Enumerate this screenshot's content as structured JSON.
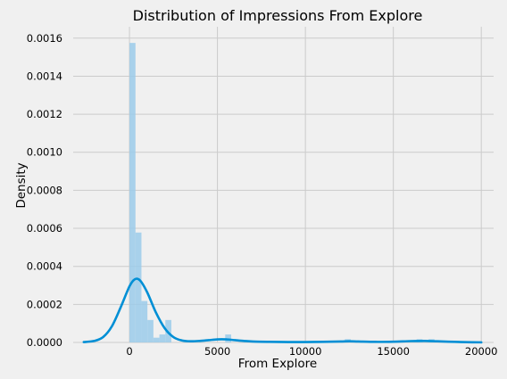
{
  "chart_data": {
    "type": "bar",
    "title": "Distribution of Impressions From Explore",
    "xlabel": "From Explore",
    "ylabel": "Density",
    "xlim": [
      -3200,
      20700
    ],
    "ylim": [
      0,
      0.00166
    ],
    "grid": true,
    "x_ticks": [
      {
        "value": 0,
        "label": "0"
      },
      {
        "value": 5000,
        "label": "5000"
      },
      {
        "value": 10000,
        "label": "10000"
      },
      {
        "value": 15000,
        "label": "15000"
      },
      {
        "value": 20000,
        "label": "20000"
      }
    ],
    "y_ticks": [
      {
        "value": 0,
        "label": "0.0000"
      },
      {
        "value": 0.0002,
        "label": "0.0002"
      },
      {
        "value": 0.0004,
        "label": "0.0004"
      },
      {
        "value": 0.0006,
        "label": "0.0006"
      },
      {
        "value": 0.0008,
        "label": "0.0008"
      },
      {
        "value": 0.001,
        "label": "0.0010"
      },
      {
        "value": 0.0012,
        "label": "0.0012"
      },
      {
        "value": 0.0014,
        "label": "0.0014"
      },
      {
        "value": 0.0016,
        "label": "0.0016"
      }
    ],
    "histogram": {
      "bins": [
        {
          "x0": 0,
          "x1": 340,
          "density": 0.001575
        },
        {
          "x0": 340,
          "x1": 680,
          "density": 0.000578
        },
        {
          "x0": 680,
          "x1": 1020,
          "density": 0.000218
        },
        {
          "x0": 1020,
          "x1": 1360,
          "density": 0.000118
        },
        {
          "x0": 1360,
          "x1": 1700,
          "density": 2.5e-05
        },
        {
          "x0": 1700,
          "x1": 2040,
          "density": 4.2e-05
        },
        {
          "x0": 2040,
          "x1": 2380,
          "density": 0.000118
        },
        {
          "x0": 5440,
          "x1": 5780,
          "density": 4.2e-05
        },
        {
          "x0": 12240,
          "x1": 12580,
          "density": 1.7e-05
        },
        {
          "x0": 16320,
          "x1": 16660,
          "density": 1.7e-05
        },
        {
          "x0": 17000,
          "x1": 17340,
          "density": 1.7e-05
        }
      ]
    },
    "kde": {
      "x": [
        -2600,
        -2000,
        -1500,
        -1000,
        -500,
        0,
        300,
        600,
        1000,
        1500,
        2000,
        2500,
        3000,
        3500,
        4000,
        4500,
        5000,
        5500,
        6000,
        6500,
        7000,
        8000,
        9000,
        10000,
        11000,
        12000,
        12500,
        13000,
        14000,
        15000,
        16000,
        16800,
        17500,
        18500,
        19500,
        20000
      ],
      "y": [
        2e-06,
        8e-06,
        2.8e-05,
        8.5e-05,
        0.000185,
        0.000295,
        0.000332,
        0.000326,
        0.000265,
        0.000158,
        7.5e-05,
        2.8e-05,
        1e-05,
        6e-06,
        8e-06,
        1.2e-05,
        1.6e-05,
        1.6e-05,
        1.2e-05,
        8e-06,
        5e-06,
        3e-06,
        2e-06,
        2e-06,
        3e-06,
        5e-06,
        6e-06,
        5e-06,
        3e-06,
        4e-06,
        7e-06,
        8e-06,
        6e-06,
        3e-06,
        1e-06,
        5e-07
      ]
    },
    "colors": {
      "bar_fill": "#9bcbea",
      "line": "#008fd5",
      "background": "#f0f0f0",
      "grid": "#cbcbcb"
    }
  }
}
